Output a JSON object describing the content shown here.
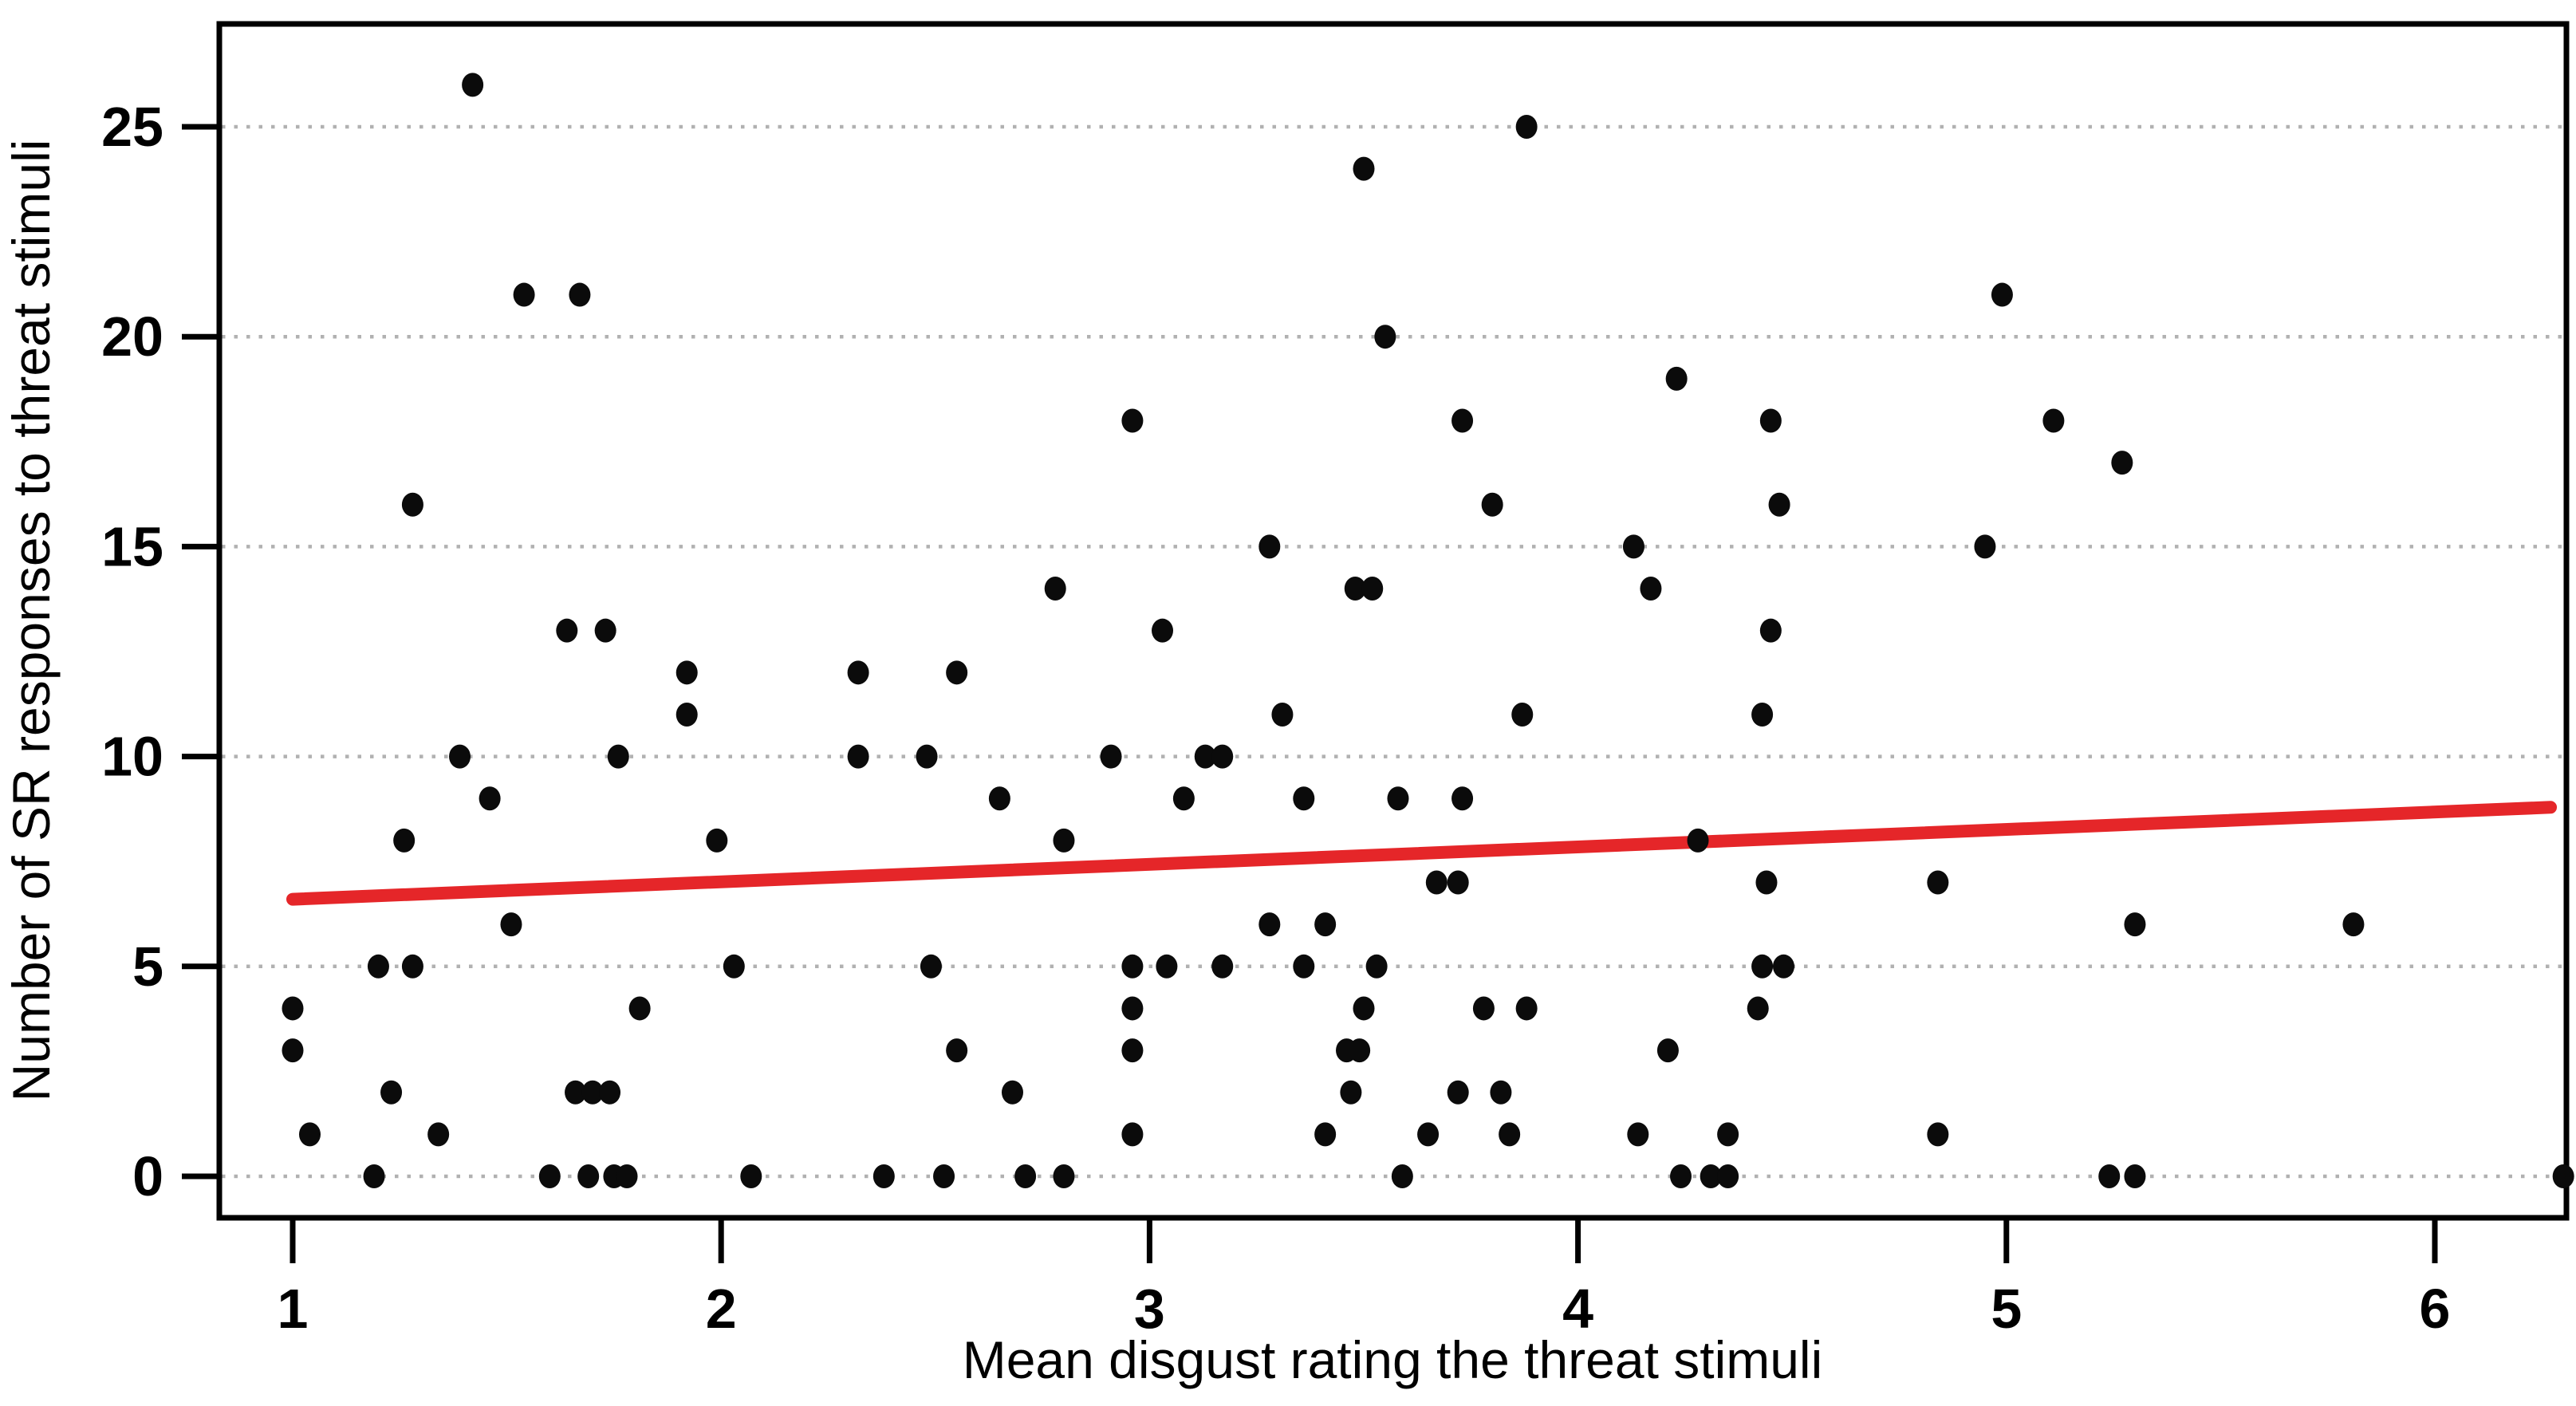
{
  "chart_data": {
    "type": "scatter",
    "title": "",
    "xlabel": "Mean disgust rating the threat stimuli",
    "ylabel": "Number of SR responses to threat stimuli",
    "x_ticks": [
      1,
      2,
      3,
      4,
      5,
      6
    ],
    "y_ticks": [
      0,
      5,
      10,
      15,
      20,
      25
    ],
    "xlim": [
      0.83,
      6.31
    ],
    "ylim": [
      -1,
      27.4
    ],
    "grid": "horizontal-dotted",
    "legend": "none",
    "point_color": "#0b0b0b",
    "grid_color": "#b1b1b1",
    "frame_color": "#000000",
    "points": [
      [
        1.0,
        4
      ],
      [
        1.0,
        3
      ],
      [
        1.04,
        1
      ],
      [
        1.19,
        0
      ],
      [
        1.2,
        5
      ],
      [
        1.23,
        2
      ],
      [
        1.26,
        8
      ],
      [
        1.28,
        5
      ],
      [
        1.28,
        16
      ],
      [
        1.34,
        1
      ],
      [
        1.39,
        10
      ],
      [
        1.42,
        26
      ],
      [
        1.46,
        9
      ],
      [
        1.51,
        6
      ],
      [
        1.54,
        21
      ],
      [
        1.6,
        0
      ],
      [
        1.64,
        13
      ],
      [
        1.66,
        2
      ],
      [
        1.67,
        21
      ],
      [
        1.69,
        0
      ],
      [
        1.7,
        2
      ],
      [
        1.73,
        13
      ],
      [
        1.74,
        2
      ],
      [
        1.75,
        0
      ],
      [
        1.78,
        0
      ],
      [
        1.76,
        10
      ],
      [
        1.81,
        4
      ],
      [
        1.92,
        12
      ],
      [
        1.92,
        11
      ],
      [
        1.99,
        8
      ],
      [
        2.03,
        5
      ],
      [
        2.07,
        0
      ],
      [
        2.32,
        12
      ],
      [
        2.32,
        10
      ],
      [
        2.38,
        0
      ],
      [
        2.48,
        10
      ],
      [
        2.49,
        5
      ],
      [
        2.52,
        0
      ],
      [
        2.55,
        12
      ],
      [
        2.55,
        3
      ],
      [
        2.65,
        9
      ],
      [
        2.68,
        2
      ],
      [
        2.71,
        0
      ],
      [
        2.78,
        14
      ],
      [
        2.8,
        8
      ],
      [
        2.8,
        0
      ],
      [
        2.91,
        10
      ],
      [
        2.96,
        18
      ],
      [
        2.96,
        5
      ],
      [
        2.96,
        4
      ],
      [
        2.96,
        3
      ],
      [
        2.96,
        1
      ],
      [
        3.03,
        13
      ],
      [
        3.04,
        5
      ],
      [
        3.08,
        9
      ],
      [
        3.13,
        10
      ],
      [
        3.17,
        10
      ],
      [
        3.17,
        5
      ],
      [
        3.28,
        15
      ],
      [
        3.28,
        6
      ],
      [
        3.31,
        11
      ],
      [
        3.36,
        9
      ],
      [
        3.36,
        5
      ],
      [
        3.41,
        6
      ],
      [
        3.41,
        1
      ],
      [
        3.46,
        3
      ],
      [
        3.47,
        2
      ],
      [
        3.49,
        3
      ],
      [
        3.5,
        24
      ],
      [
        3.5,
        4
      ],
      [
        3.48,
        14
      ],
      [
        3.52,
        14
      ],
      [
        3.53,
        5
      ],
      [
        3.55,
        20
      ],
      [
        3.58,
        9
      ],
      [
        3.59,
        0
      ],
      [
        3.65,
        1
      ],
      [
        3.67,
        7
      ],
      [
        3.72,
        7
      ],
      [
        3.72,
        2
      ],
      [
        3.73,
        9
      ],
      [
        3.73,
        18
      ],
      [
        3.78,
        4
      ],
      [
        3.8,
        16
      ],
      [
        3.82,
        2
      ],
      [
        3.84,
        1
      ],
      [
        3.87,
        11
      ],
      [
        3.88,
        25
      ],
      [
        3.88,
        4
      ],
      [
        4.13,
        15
      ],
      [
        4.14,
        1
      ],
      [
        4.17,
        14
      ],
      [
        4.21,
        3
      ],
      [
        4.23,
        19
      ],
      [
        4.24,
        0
      ],
      [
        4.28,
        8
      ],
      [
        4.31,
        0
      ],
      [
        4.35,
        0
      ],
      [
        4.35,
        1
      ],
      [
        4.42,
        4
      ],
      [
        4.43,
        11
      ],
      [
        4.43,
        5
      ],
      [
        4.44,
        7
      ],
      [
        4.45,
        18
      ],
      [
        4.45,
        13
      ],
      [
        4.47,
        16
      ],
      [
        4.48,
        5
      ],
      [
        4.84,
        7
      ],
      [
        4.84,
        1
      ],
      [
        4.95,
        15
      ],
      [
        4.99,
        21
      ],
      [
        5.11,
        18
      ],
      [
        5.24,
        0
      ],
      [
        5.27,
        17
      ],
      [
        5.3,
        6
      ],
      [
        5.3,
        0
      ],
      [
        5.81,
        6
      ],
      [
        6.3,
        0
      ]
    ],
    "trend_line": {
      "x1": 1.0,
      "y1": 6.6,
      "x2": 6.27,
      "y2": 8.79,
      "color": "#e52629"
    }
  }
}
